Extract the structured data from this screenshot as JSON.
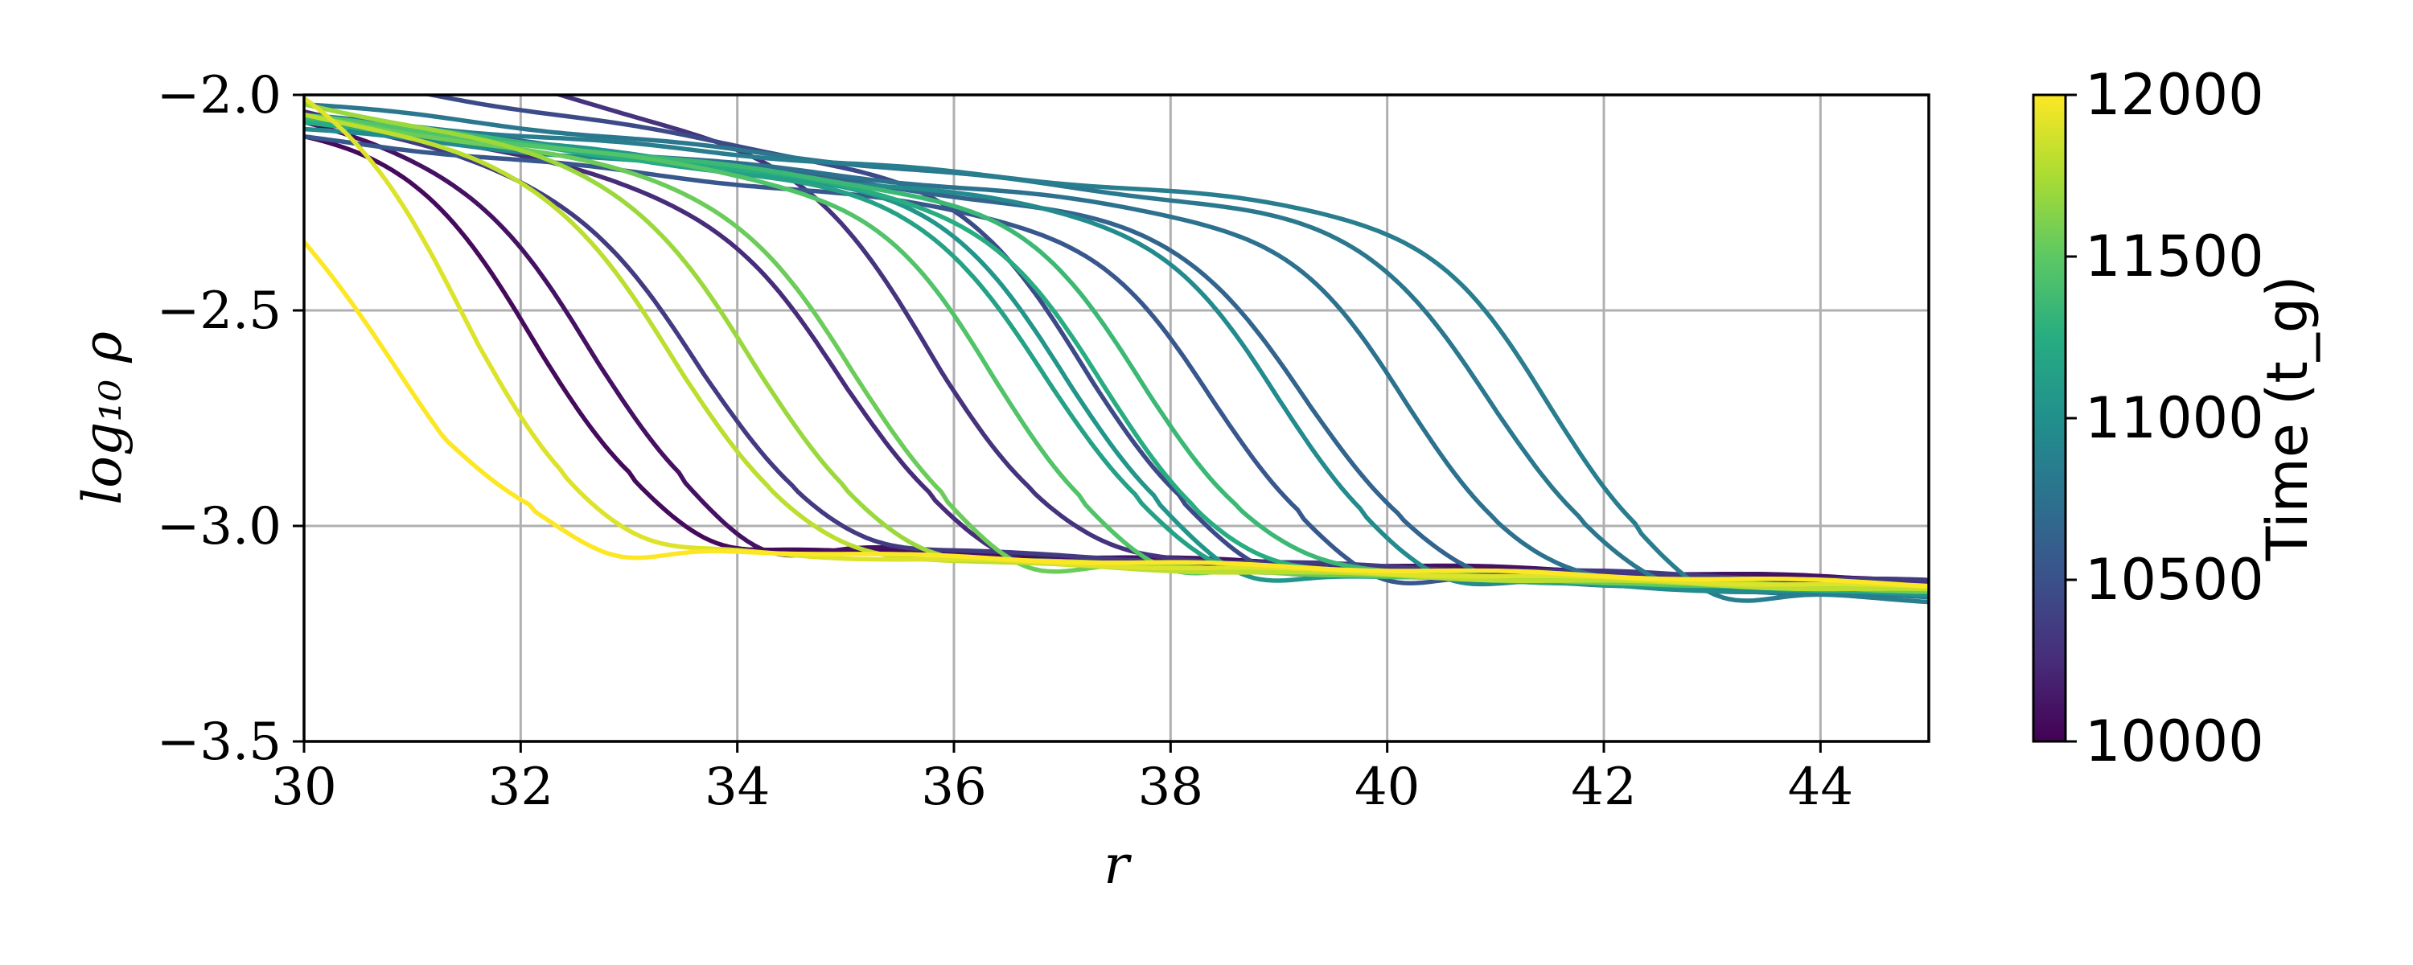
{
  "chart_data": {
    "type": "line",
    "xlabel": "r",
    "ylabel": "log₁₀ ρ",
    "xlim": [
      30,
      45
    ],
    "ylim": [
      -3.5,
      -2.0
    ],
    "xticks": [
      30,
      32,
      34,
      36,
      38,
      40,
      42,
      44
    ],
    "yticks": [
      -3.5,
      -3.0,
      -2.5,
      -2.0
    ],
    "xtick_labels": [
      "30",
      "32",
      "34",
      "36",
      "38",
      "40",
      "42",
      "44"
    ],
    "ytick_labels": [
      "−3.5",
      "−3.0",
      "−2.5",
      "−2.0"
    ],
    "grid": true,
    "colormap": "viridis",
    "colorbar": {
      "label": "Time (t_g)",
      "range": [
        10000,
        12000
      ],
      "ticks": [
        10000,
        10500,
        11000,
        11500,
        12000
      ],
      "tick_labels": [
        "10000",
        "10500",
        "11000",
        "11500",
        "12000"
      ],
      "stops": [
        "#440154",
        "#472c7a",
        "#3b518b",
        "#2c718e",
        "#21908d",
        "#27ad81",
        "#5cc863",
        "#aadc32",
        "#fde725"
      ]
    },
    "series": [
      {
        "time": 10050,
        "step": 32.2,
        "base": [
          -2.08,
          -2.16
        ],
        "post": -3.04
      },
      {
        "time": 10100,
        "step": 32.7,
        "base": [
          -2.06,
          -2.2
        ],
        "post": -3.04
      },
      {
        "time": 10250,
        "step": 35.0,
        "base": [
          -2.04,
          -2.29
        ],
        "post": -3.07
      },
      {
        "time": 10300,
        "step": 35.9,
        "base": [
          -1.85,
          -2.22
        ],
        "post": -3.07
      },
      {
        "time": 10350,
        "step": 33.7,
        "base": [
          -2.05,
          -2.26
        ],
        "post": -3.05
      },
      {
        "time": 10450,
        "step": 37.3,
        "base": [
          -1.95,
          -2.25
        ],
        "post": -3.09
      },
      {
        "time": 10550,
        "step": 38.4,
        "base": [
          -2.1,
          -2.32
        ],
        "post": -3.11
      },
      {
        "time": 10650,
        "step": 39.3,
        "base": [
          -2.05,
          -2.33
        ],
        "post": -3.12
      },
      {
        "time": 10750,
        "step": 40.2,
        "base": [
          -2.06,
          -2.32
        ],
        "post": -3.13
      },
      {
        "time": 10800,
        "step": 41.0,
        "base": [
          -2.02,
          -2.32
        ],
        "post": -3.14
      },
      {
        "time": 10850,
        "step": 41.5,
        "base": [
          -2.05,
          -2.3
        ],
        "post": -3.15
      },
      {
        "time": 10950,
        "step": 39.0,
        "base": [
          -2.08,
          -2.3
        ],
        "post": -3.12
      },
      {
        "time": 11050,
        "step": 37.1,
        "base": [
          -2.05,
          -2.26
        ],
        "post": -3.1
      },
      {
        "time": 11150,
        "step": 36.9,
        "base": [
          -2.06,
          -2.26
        ],
        "post": -3.09
      },
      {
        "time": 11250,
        "step": 37.4,
        "base": [
          -2.06,
          -2.27
        ],
        "post": -3.1
      },
      {
        "time": 11350,
        "step": 37.8,
        "base": [
          -2.05,
          -2.28
        ],
        "post": -3.1
      },
      {
        "time": 11450,
        "step": 36.4,
        "base": [
          -2.05,
          -2.25
        ],
        "post": -3.09
      },
      {
        "time": 11550,
        "step": 35.1,
        "base": [
          -2.05,
          -2.24
        ],
        "post": -3.08
      },
      {
        "time": 11700,
        "step": 34.2,
        "base": [
          -2.02,
          -2.22
        ],
        "post": -3.07
      },
      {
        "time": 11800,
        "step": 33.5,
        "base": [
          -2.04,
          -2.23
        ],
        "post": -3.07
      },
      {
        "time": 11900,
        "step": 31.6,
        "base": [
          -1.95,
          -2.1
        ],
        "post": -3.05
      },
      {
        "time": 12000,
        "step": 31.3,
        "base": [
          -2.28,
          -2.55
        ],
        "post": -3.04
      }
    ]
  }
}
